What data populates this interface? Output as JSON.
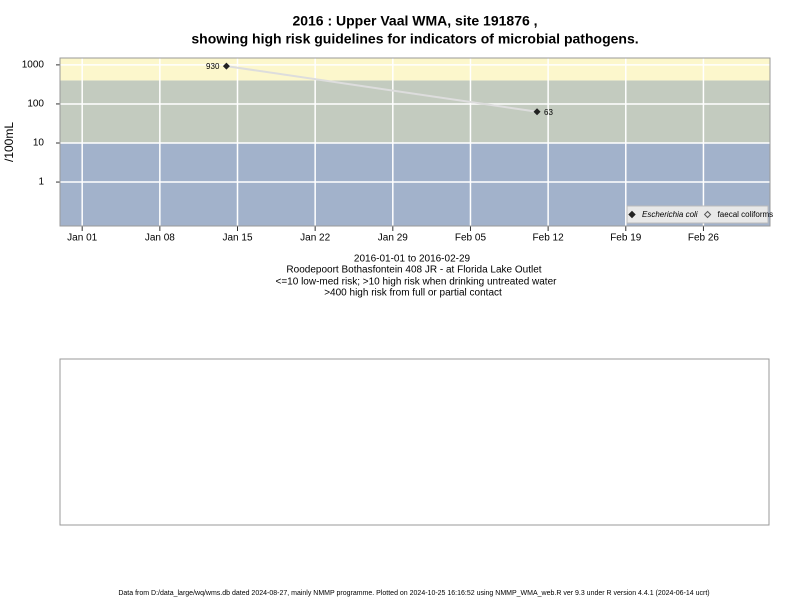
{
  "chart_data": {
    "type": "line",
    "title": "2016 : Upper Vaal WMA, site 191876 ,",
    "subtitle": "showing high risk guidelines for indicators of microbial pathogens.",
    "ylabel": "/100mL",
    "notes": [
      "2016-01-01 to 2016-02-29",
      "Roodepoort Bothasfontein 408 JR - at Florida Lake Outlet",
      "<=10 low-med risk; >10 high risk when drinking untreated water",
      ">400 high risk from full or partial contact"
    ],
    "footer": "Data from D:/data_large/wq/wms.db dated 2024-08-27, mainly NMMP programme. Plotted on 2024-10-25 16:16:52 using NMMP_WMA_web.R ver 9.3 under R version 4.4.1 (2024-06-14 ucrt)",
    "x": [
      "2016-01-14",
      "2016-02-11"
    ],
    "series": [
      {
        "name": "Escherichia coli",
        "color": "#222222",
        "line_color": "#dddddd",
        "values": [
          930,
          63
        ]
      },
      {
        "name": "faecal coliforms",
        "color": "#555555",
        "values": [
          null,
          null
        ]
      }
    ],
    "thresholds": [
      10,
      400
    ],
    "band_colors": [
      "#a2b2cb",
      "#c3cbbf",
      "#fcf7cc"
    ],
    "ylim": [
      0.075,
      1500
    ],
    "log_y": true,
    "yticks": [
      1,
      10,
      100,
      1000
    ],
    "xlim": [
      "2015-12-30",
      "2016-03-03"
    ],
    "xticks": [
      {
        "value": "2016-01-01",
        "label": "Jan 01"
      },
      {
        "value": "2016-01-08",
        "label": "Jan 08"
      },
      {
        "value": "2016-01-15",
        "label": "Jan 15"
      },
      {
        "value": "2016-01-22",
        "label": "Jan 22"
      },
      {
        "value": "2016-01-29",
        "label": "Jan 29"
      },
      {
        "value": "2016-02-05",
        "label": "Feb 05"
      },
      {
        "value": "2016-02-12",
        "label": "Feb 12"
      },
      {
        "value": "2016-02-19",
        "label": "Feb 19"
      },
      {
        "value": "2016-02-26",
        "label": "Feb 26"
      }
    ],
    "grid": true,
    "legend": "bottom-right"
  }
}
